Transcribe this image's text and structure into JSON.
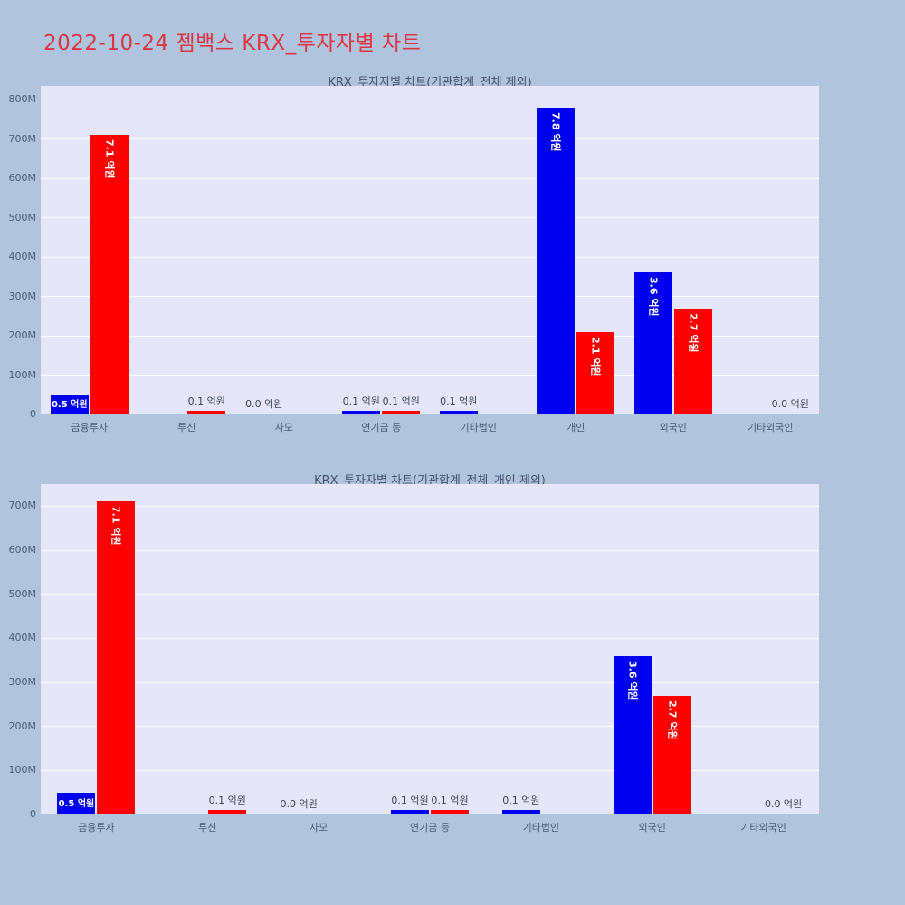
{
  "page": {
    "title": "2022-10-24 젬백스 KRX_투자자별 차트",
    "title_color": "#dc3545",
    "background": "#b0c4de"
  },
  "chart_data": [
    {
      "type": "bar",
      "title": "KRX_투자자별 차트(기관합계_전체 제외)",
      "xlabel": "",
      "ylabel": "",
      "grid": true,
      "legend": "none",
      "plot_bg": "#e6e6fa",
      "categories": [
        "금융투자",
        "투신",
        "사모",
        "연기금 등",
        "기타법인",
        "개인",
        "외국인",
        "기타외국인"
      ],
      "ylim_M": 835,
      "yticks_M": [
        0,
        100,
        200,
        300,
        400,
        500,
        600,
        700,
        800
      ],
      "ytick_labels": [
        "0",
        "100M",
        "200M",
        "300M",
        "400M",
        "500M",
        "600M",
        "700M",
        "800M"
      ],
      "series": [
        {
          "name": "blue",
          "color": "#0000f0",
          "values_M": [
            50,
            0,
            0,
            10,
            10,
            780,
            360,
            0
          ],
          "labels": [
            "0.5 억원",
            null,
            "0.0 억원",
            "0.1 억원",
            "0.1 억원",
            "7.8 억원",
            "3.6 억원",
            null
          ],
          "label_pos": [
            "inside-h",
            null,
            "above",
            "above",
            "above",
            "inside-rot",
            "inside-rot",
            null
          ]
        },
        {
          "name": "red",
          "color": "#ff0000",
          "values_M": [
            710,
            10,
            0,
            10,
            0,
            210,
            270,
            0
          ],
          "labels": [
            "7.1 억원",
            "0.1 억원",
            null,
            "0.1 억원",
            null,
            "2.1 억원",
            "2.7 억원",
            "0.0 억원"
          ],
          "label_pos": [
            "inside-rot",
            "above",
            null,
            "above",
            null,
            "inside-rot",
            "inside-rot",
            "above"
          ]
        }
      ]
    },
    {
      "type": "bar",
      "title": "KRX_투자자별 차트(기관합계_전체_개인 제외)",
      "xlabel": "",
      "ylabel": "",
      "grid": true,
      "legend": "none",
      "plot_bg": "#e6e6fa",
      "categories": [
        "금융투자",
        "투신",
        "사모",
        "연기금 등",
        "기타법인",
        "외국인",
        "기타외국인"
      ],
      "ylim_M": 750,
      "yticks_M": [
        0,
        100,
        200,
        300,
        400,
        500,
        600,
        700
      ],
      "ytick_labels": [
        "0",
        "100M",
        "200M",
        "300M",
        "400M",
        "500M",
        "600M",
        "700M"
      ],
      "series": [
        {
          "name": "blue",
          "color": "#0000f0",
          "values_M": [
            50,
            0,
            0,
            10,
            10,
            360,
            0
          ],
          "labels": [
            "0.5 억원",
            null,
            "0.0 억원",
            "0.1 억원",
            "0.1 억원",
            "3.6 억원",
            null
          ],
          "label_pos": [
            "inside-h",
            null,
            "above",
            "above",
            "above",
            "inside-rot",
            null
          ]
        },
        {
          "name": "red",
          "color": "#ff0000",
          "values_M": [
            710,
            10,
            0,
            10,
            0,
            270,
            0
          ],
          "labels": [
            "7.1 억원",
            "0.1 억원",
            null,
            "0.1 억원",
            null,
            "2.7 억원",
            "0.0 억원"
          ],
          "label_pos": [
            "inside-rot",
            "above",
            null,
            "above",
            null,
            "inside-rot",
            "above"
          ]
        }
      ]
    }
  ]
}
